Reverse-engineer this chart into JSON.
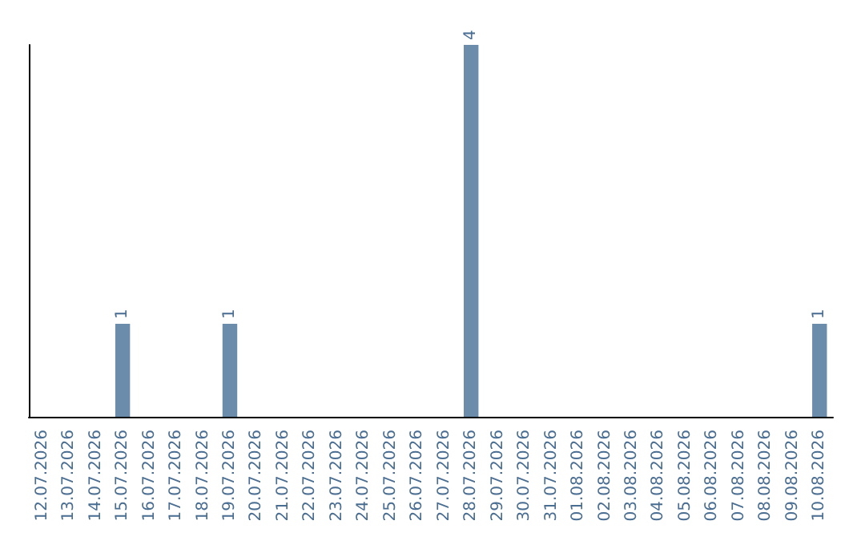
{
  "chart_data": {
    "type": "bar",
    "categories": [
      "12.07.2026",
      "13.07.2026",
      "14.07.2026",
      "15.07.2026",
      "16.07.2026",
      "17.07.2026",
      "18.07.2026",
      "19.07.2026",
      "20.07.2026",
      "21.07.2026",
      "22.07.2026",
      "23.07.2026",
      "24.07.2026",
      "25.07.2026",
      "26.07.2026",
      "27.07.2026",
      "28.07.2026",
      "29.07.2026",
      "30.07.2026",
      "31.07.2026",
      "01.08.2026",
      "02.08.2026",
      "03.08.2026",
      "04.08.2026",
      "05.08.2026",
      "06.08.2026",
      "07.08.2026",
      "08.08.2026",
      "09.08.2026",
      "10.08.2026"
    ],
    "values": [
      0,
      0,
      0,
      1,
      0,
      0,
      0,
      1,
      0,
      0,
      0,
      0,
      0,
      0,
      0,
      0,
      4,
      0,
      0,
      0,
      0,
      0,
      0,
      0,
      0,
      0,
      0,
      0,
      0,
      1
    ],
    "value_labels": [
      null,
      null,
      null,
      "1",
      null,
      null,
      null,
      "1",
      null,
      null,
      null,
      null,
      null,
      null,
      null,
      null,
      "4",
      null,
      null,
      null,
      null,
      null,
      null,
      null,
      null,
      null,
      null,
      null,
      null,
      "1"
    ],
    "color": "#6b8cab",
    "grid": false,
    "tick_labels": "x"
  }
}
